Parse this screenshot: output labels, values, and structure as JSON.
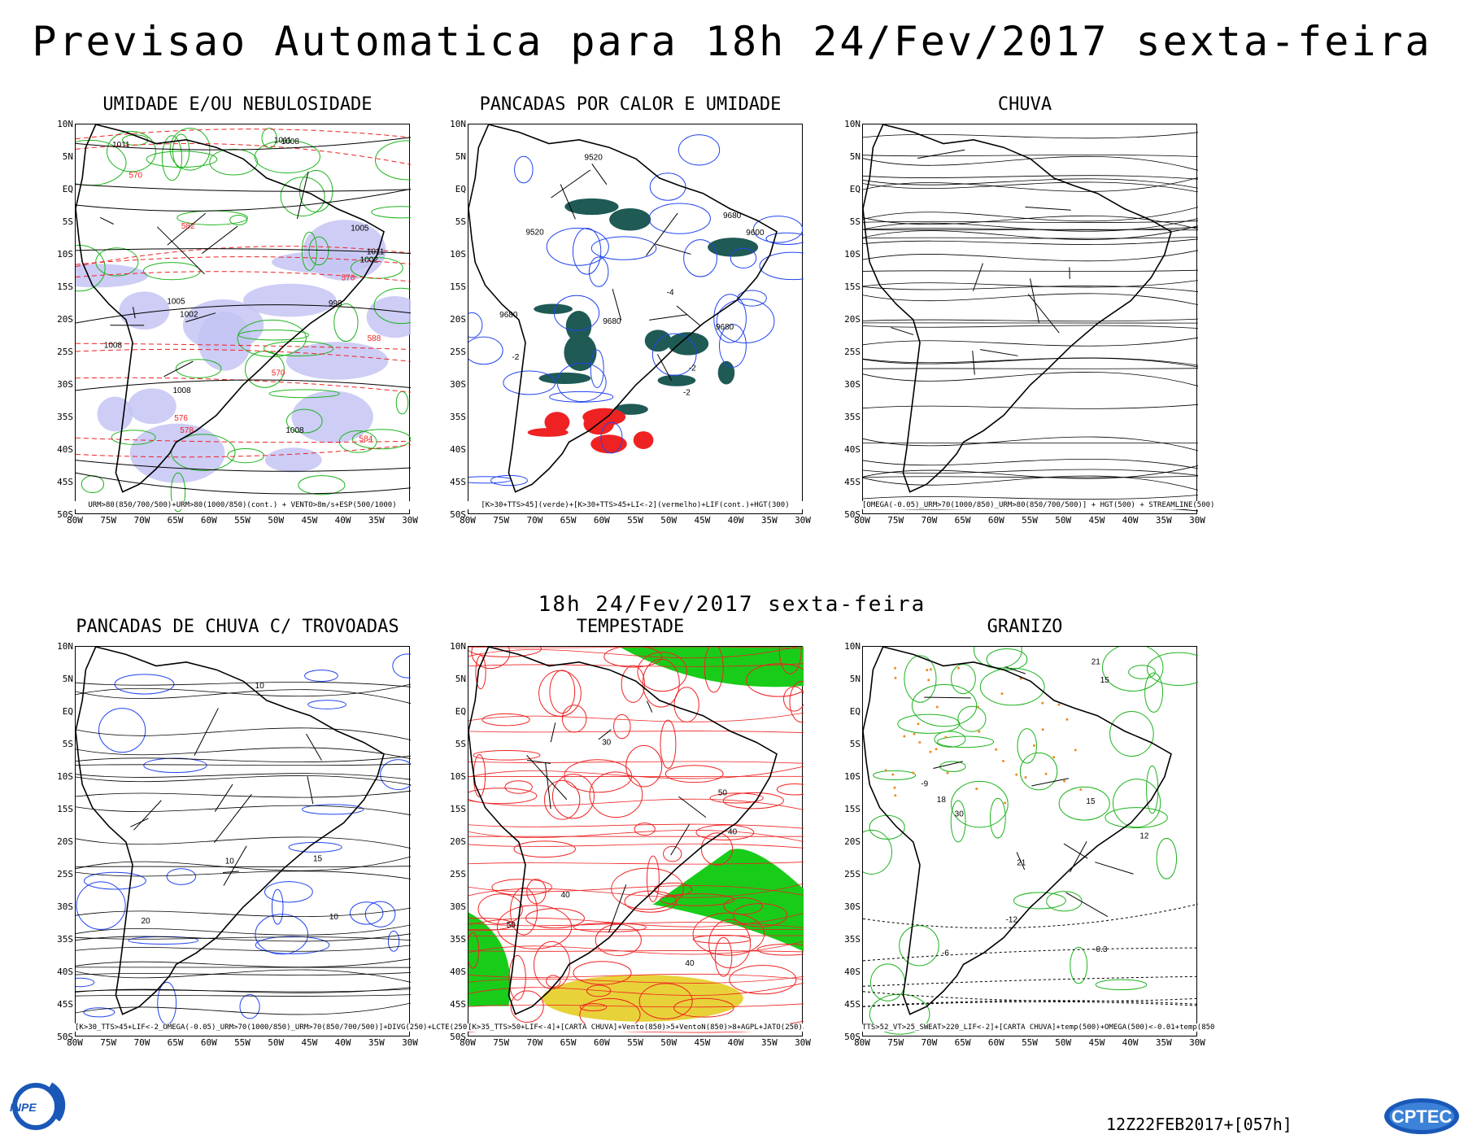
{
  "header": {
    "title": "Previsao Automatica  para 18h 24/Fev/2017 sexta-feira",
    "mid_date": "18h 24/Fev/2017 sexta-feira",
    "run": "12Z22FEB2017+[057h]"
  },
  "axes": {
    "lat_labels": [
      "10N",
      "5N",
      "EQ",
      "5S",
      "10S",
      "15S",
      "20S",
      "25S",
      "30S",
      "35S",
      "40S",
      "45S",
      "50S"
    ],
    "lon_labels": [
      "80W",
      "75W",
      "70W",
      "65W",
      "60W",
      "55W",
      "50W",
      "45W",
      "40W",
      "35W",
      "30W"
    ]
  },
  "panels": [
    {
      "title": "UMIDADE E/OU NEBULOSIDADE",
      "legend": "URM>80(850/700/500)+URM>80(1000/850)(cont.) + VENTO>8m/s+ESP(500/1000)",
      "labels": [
        "1011",
        "1005",
        "1008",
        "1008",
        "1002",
        "1005",
        "1008",
        "1011",
        "1008",
        "999",
        "1002",
        "1011",
        "576",
        "582",
        "588",
        "570",
        "578",
        "576",
        "584",
        "570"
      ]
    },
    {
      "title": "PANCADAS POR CALOR E UMIDADE",
      "legend": "[K>30+TTS>45](verde)+[K>30+TTS>45+LI<-2](vermelho)+LIF(cont.)+HGT(300)",
      "labels": [
        "9680",
        "9680",
        "9680",
        "9680",
        "9600",
        "9520",
        "9520",
        "-2",
        "-2",
        "-4",
        "-2"
      ]
    },
    {
      "title": "CHUVA",
      "legend": "[OMEGA(-0.05)_URM>70(1000/850)_URM>80(850/700/500)] + HGT(500) + STREAMLINE(500)",
      "labels": []
    },
    {
      "title": "PANCADAS DE CHUVA C/ TROVOADAS",
      "legend": "[K>30_TTS>45+LIF<-2_OMEGA(-0.05)_URM>70(1000/850)_URM>70(850/700/500)]+DIVG(250)+LCTE(250)",
      "labels": [
        "10",
        "20",
        "15",
        "10",
        "10"
      ]
    },
    {
      "title": "TEMPESTADE",
      "legend": "[K>35_TTS>50+LIF<-4]+[CARTA CHUVA]+Vento(850)>5+VentoN(850)>8+AGPL+JATO(250)",
      "labels": [
        "50",
        "40",
        "40",
        "50",
        "40",
        "30"
      ]
    },
    {
      "title": "GRANIZO",
      "legend": "TTS>52_VT>25_SWEAT>220_LIF<-2]+[CARTA CHUVA]+temp(500)+OMEGA(500)<-0.01+temp(850",
      "labels": [
        "15",
        "21",
        "18",
        "15",
        "12",
        "-9",
        "-12",
        "-6",
        "-0.3",
        "30",
        "21"
      ]
    }
  ],
  "logos": {
    "left": "INPE",
    "right": "CPTEC"
  },
  "colors": {
    "green_contour": "#1db31d",
    "red_contour": "#ee2222",
    "blue_contour": "#2244ee",
    "lavender_fill": "#c4c4f4",
    "teal_fill": "#1f5a55",
    "yellow_fill": "#e8d23a",
    "orange_contour": "#ee8a22",
    "bright_green_fill": "#19cc19"
  }
}
